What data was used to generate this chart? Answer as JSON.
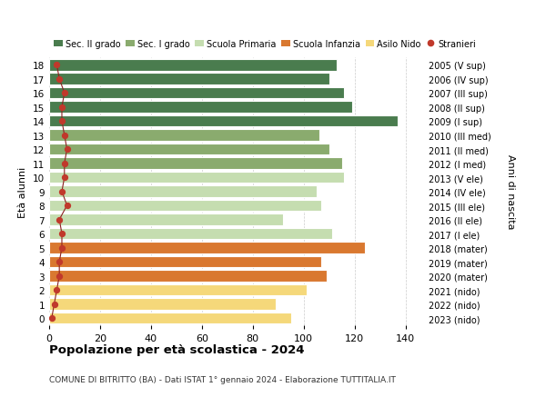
{
  "ages": [
    0,
    1,
    2,
    3,
    4,
    5,
    6,
    7,
    8,
    9,
    10,
    11,
    12,
    13,
    14,
    15,
    16,
    17,
    18
  ],
  "bar_values": [
    95,
    89,
    101,
    109,
    107,
    124,
    111,
    92,
    107,
    105,
    116,
    115,
    110,
    106,
    137,
    119,
    116,
    110,
    113
  ],
  "stranieri": [
    1,
    2,
    3,
    4,
    4,
    5,
    5,
    4,
    7,
    5,
    6,
    6,
    7,
    6,
    5,
    5,
    6,
    4,
    3
  ],
  "right_labels": [
    "2023 (nido)",
    "2022 (nido)",
    "2021 (nido)",
    "2020 (mater)",
    "2019 (mater)",
    "2018 (mater)",
    "2017 (I ele)",
    "2016 (II ele)",
    "2015 (III ele)",
    "2014 (IV ele)",
    "2013 (V ele)",
    "2012 (I med)",
    "2011 (II med)",
    "2010 (III med)",
    "2009 (I sup)",
    "2008 (II sup)",
    "2007 (III sup)",
    "2006 (IV sup)",
    "2005 (V sup)"
  ],
  "colors": {
    "sec2": "#4a7c4e",
    "sec1": "#8aab6e",
    "primaria": "#c5ddb0",
    "infanzia": "#d97830",
    "nido": "#f5d87a",
    "stranieri_line": "#8b2020",
    "stranieri_dot": "#c0392b"
  },
  "bar_colors": [
    "#f5d87a",
    "#f5d87a",
    "#f5d87a",
    "#d97830",
    "#d97830",
    "#d97830",
    "#c5ddb0",
    "#c5ddb0",
    "#c5ddb0",
    "#c5ddb0",
    "#c5ddb0",
    "#8aab6e",
    "#8aab6e",
    "#8aab6e",
    "#4a7c4e",
    "#4a7c4e",
    "#4a7c4e",
    "#4a7c4e",
    "#4a7c4e"
  ],
  "xlim": [
    0,
    148
  ],
  "title": "Popolazione per età scolastica - 2024",
  "subtitle": "COMUNE DI BITRITTO (BA) - Dati ISTAT 1° gennaio 2024 - Elaborazione TUTTITALIA.IT",
  "ylabel": "Età alunni",
  "right_ylabel": "Anni di nascita",
  "legend_labels": [
    "Sec. II grado",
    "Sec. I grado",
    "Scuola Primaria",
    "Scuola Infanzia",
    "Asilo Nido",
    "Stranieri"
  ],
  "legend_colors": [
    "#4a7c4e",
    "#8aab6e",
    "#c5ddb0",
    "#d97830",
    "#f5d87a",
    "#c0392b"
  ]
}
